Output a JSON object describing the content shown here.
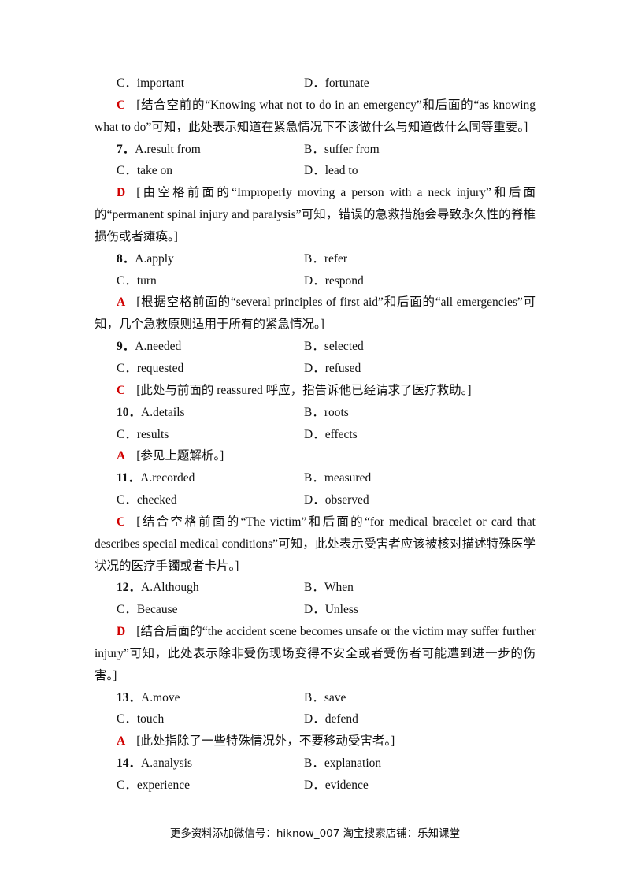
{
  "top_options": [
    "C．important",
    "D．fortunate"
  ],
  "top_answer": {
    "letter": "C",
    "text": "[结合空前的“Knowing what not to do in an emergency”和后面的“as knowing what to do”可知，此处表示知道在紧急情况下不该做什么与知道做什么同等重要。]"
  },
  "questions": [
    {
      "number": "7．",
      "options": [
        "A.result from",
        "B．suffer from",
        "C．take on",
        "D．lead to"
      ],
      "answer": "D",
      "explanation": "[由空格前面的“Improperly moving a person with a neck injury”和后面的“permanent spinal injury and paralysis”可知，错误的急救措施会导致永久性的脊椎损伤或者瘫痪。]"
    },
    {
      "number": "8．",
      "options": [
        "A.apply",
        "B．refer",
        "C．turn",
        "D．respond"
      ],
      "answer": "A",
      "explanation": "[根据空格前面的“several principles of first aid”和后面的“all emergencies”可知，几个急救原则适用于所有的紧急情况。]"
    },
    {
      "number": "9．",
      "options": [
        "A.needed",
        "B．selected",
        "C．requested",
        "D．refused"
      ],
      "answer": "C",
      "explanation": "[此处与前面的 reassured 呼应，指告诉他已经请求了医疗救助。]"
    },
    {
      "number": "10．",
      "options": [
        "A.details",
        "B．roots",
        "C．results",
        "D．effects"
      ],
      "answer": "A",
      "explanation": "[参见上题解析。]"
    },
    {
      "number": "11．",
      "options": [
        "A.recorded",
        "B．measured",
        "C．checked",
        "D．observed"
      ],
      "answer": "C",
      "explanation": "[结合空格前面的“The victim”和后面的“for medical bracelet or card that describes special medical conditions”可知，此处表示受害者应该被核对描述特殊医学状况的医疗手镯或者卡片。]"
    },
    {
      "number": "12．",
      "options": [
        "A.Although",
        "B．When",
        "C．Because",
        "D．Unless"
      ],
      "answer": "D",
      "explanation": "[结合后面的“the accident scene becomes unsafe or the victim may suffer further injury”可知，此处表示除非受伤现场变得不安全或者受伤者可能遭到进一步的伤害。]"
    },
    {
      "number": "13．",
      "options": [
        "A.move",
        "B．save",
        "C．touch",
        "D．defend"
      ],
      "answer": "A",
      "explanation": "[此处指除了一些特殊情况外，不要移动受害者。]"
    },
    {
      "number": "14．",
      "options": [
        "A.analysis",
        "B．explanation",
        "C．experience",
        "D．evidence"
      ]
    }
  ],
  "footer": "更多资料添加微信号：hiknow_007 淘宝搜索店铺：乐知课堂"
}
